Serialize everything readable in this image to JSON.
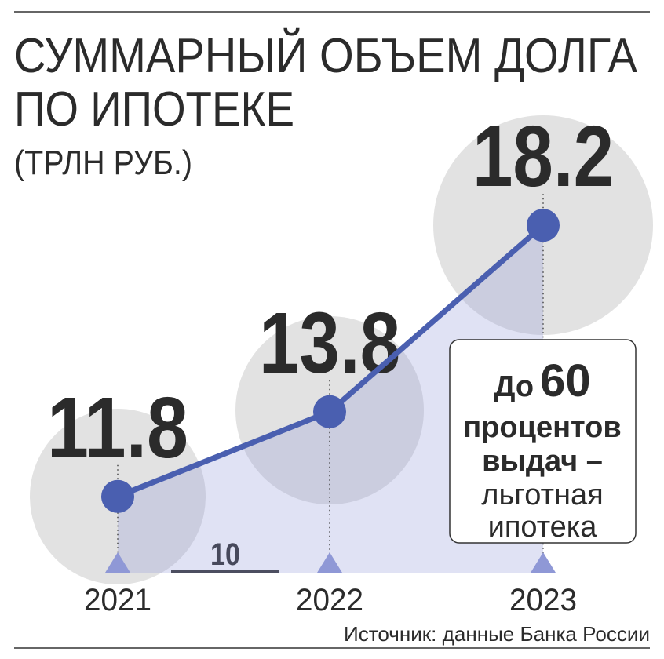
{
  "chart_data": {
    "type": "line",
    "title": [
      "СУММАРНЫЙ ОБЪЕМ ДОЛГА",
      "ПО ИПОТЕКЕ"
    ],
    "subtitle": "(ТРЛН РУБ.)",
    "categories": [
      "2021",
      "2022",
      "2023"
    ],
    "values": [
      11.8,
      13.8,
      18.2
    ],
    "color": "#4a5fb0",
    "ylim": [
      10,
      20
    ],
    "yticks": [
      10
    ],
    "annotation": {
      "lines": [
        [
          "До",
          "60"
        ],
        [
          "процентов"
        ],
        [
          "выдач –"
        ],
        [
          "льготная"
        ],
        [
          "ипотека"
        ]
      ]
    },
    "source": "Источник: данные Банка России"
  }
}
